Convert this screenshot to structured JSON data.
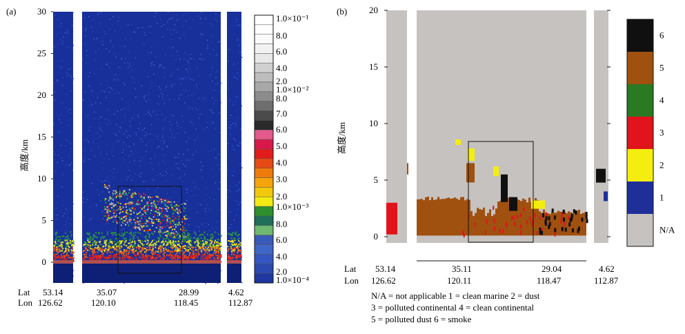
{
  "chart_data": [
    {
      "type": "heatmap",
      "panel_label": "(a)",
      "ylabel": "高度/km",
      "ylim": [
        -2,
        30
      ],
      "yticks": [
        "0",
        "5",
        "10",
        "15",
        "20",
        "25",
        "30"
      ],
      "colorbar": {
        "scale": "log",
        "labels": [
          "1.0×10⁻¹",
          "8.0",
          "6.0",
          "4.0",
          "2.0",
          "1.0×10⁻²",
          "8.0",
          "7.0",
          "6.0",
          "5.0",
          "4.0",
          "3.0",
          "2.0",
          "1.0×10⁻³",
          "8.0",
          "6.0",
          "4.0",
          "2.0",
          "1.0×10⁻⁴"
        ],
        "colors": [
          "#ffffff",
          "#ffffff",
          "#fafafa",
          "#f2f2f2",
          "#e8e8e8",
          "#d0d0d0",
          "#bdbdbd",
          "#a8a8a8",
          "#8c8c8c",
          "#6e6e6e",
          "#4a4a4a",
          "#2a2a2a",
          "#e35a8c",
          "#d9184a",
          "#e21c1c",
          "#e64a14",
          "#ef7a0c",
          "#f5a50a",
          "#f2c80c",
          "#f4ea14",
          "#2e8f2e",
          "#1f6f5a",
          "#6fb86f",
          "#3a5ab8",
          "#3f67c8",
          "#3356c0",
          "#2a48b0",
          "#1e36a0"
        ]
      },
      "lat_labels": [
        "53.14",
        "35.07",
        "28.99",
        "4.62"
      ],
      "lon_labels": [
        "126.62",
        "120.10",
        "118.45",
        "112.87"
      ],
      "axis_row_labels": [
        "Lat",
        "Lon"
      ]
    },
    {
      "type": "heatmap",
      "panel_label": "(b)",
      "ylabel": "高度/km",
      "ylim": [
        -0.5,
        20
      ],
      "yticks": [
        "0",
        "5",
        "10",
        "15",
        "20"
      ],
      "categories": [
        {
          "label": "6",
          "name": "smoke",
          "color": "#101010"
        },
        {
          "label": "5",
          "name": "polluted dust",
          "color": "#a0500f"
        },
        {
          "label": "4",
          "name": "clean continental",
          "color": "#2a7a22"
        },
        {
          "label": "3",
          "name": "polluted continental",
          "color": "#e0141a"
        },
        {
          "label": "2",
          "name": "dust",
          "color": "#f4ee10"
        },
        {
          "label": "1",
          "name": "clean marine",
          "color": "#1e2f9a"
        },
        {
          "label": "N/A",
          "name": "not applicable",
          "color": "#c6c2c0"
        }
      ],
      "lat_labels": [
        "53.14",
        "35.11",
        "29.04",
        "4.62"
      ],
      "lon_labels": [
        "126.62",
        "120.11",
        "118.47",
        "112.87"
      ],
      "axis_row_labels": [
        "Lat",
        "Lon"
      ],
      "legend_lines": [
        "N/A = not applicable   1 = clean marine   2 = dust",
        "3 = polluted continental   4 = clean continental",
        "5 = polluted dust   6 = smoke"
      ]
    }
  ]
}
